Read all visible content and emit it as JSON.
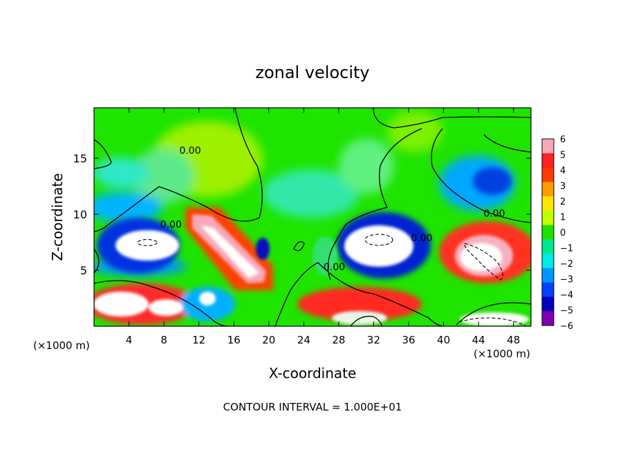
{
  "chart_data": {
    "type": "heatmap",
    "title": "zonal velocity",
    "xlabel": "X-coordinate",
    "ylabel": "Z-coordinate",
    "x_unit_left": "(×1000 m)",
    "x_unit_right": "(×1000 m)",
    "footer": "CONTOUR INTERVAL = 1.000E+01",
    "xlim": [
      0,
      50
    ],
    "ylim": [
      0,
      19.5
    ],
    "x_ticks": [
      4,
      8,
      12,
      16,
      20,
      24,
      28,
      32,
      36,
      40,
      44,
      48
    ],
    "y_ticks": [
      5,
      10,
      15
    ],
    "colorbar": {
      "labels": [
        "6",
        "5",
        "4",
        "3",
        "2",
        "1",
        "0",
        "−1",
        "−2",
        "−3",
        "−4",
        "−5",
        "−6"
      ],
      "values": [
        6,
        5,
        4,
        3,
        2,
        1,
        0,
        -1,
        -2,
        -3,
        -4,
        -5,
        -6
      ],
      "colors": [
        "#f8a8b8",
        "#ff2020",
        "#ff3c00",
        "#ff9c00",
        "#ffe800",
        "#c0ff00",
        "#20e000",
        "#00e88c",
        "#00e8e8",
        "#0096ff",
        "#0040ff",
        "#0000c0",
        "#8000b0"
      ]
    },
    "contour_labels": [
      {
        "text": "0.00",
        "x": 11.0,
        "y": 15.7
      },
      {
        "text": "0.00",
        "x": 8.8,
        "y": 9.1
      },
      {
        "text": "0.00",
        "x": 27.5,
        "y": 5.3
      },
      {
        "text": "0.00",
        "x": 37.5,
        "y": 7.9
      },
      {
        "text": "0.00",
        "x": 45.8,
        "y": 10.1
      }
    ]
  }
}
